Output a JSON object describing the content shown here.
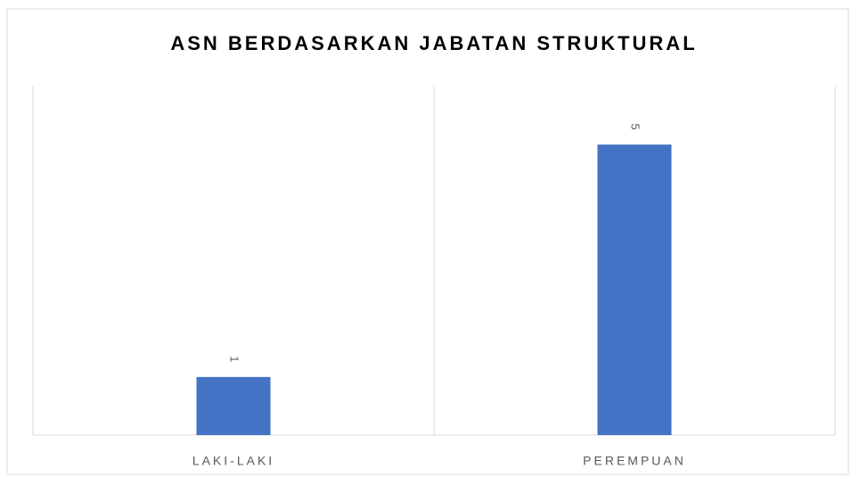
{
  "chart_data": {
    "type": "bar",
    "title": "ASN BERDASARKAN JABATAN STRUKTURAL",
    "categories": [
      "LAKI-LAKI",
      "PEREMPUAN"
    ],
    "values": [
      1,
      5
    ],
    "color": "#4472c4",
    "ylim": [
      0,
      6
    ],
    "data_labels": true
  }
}
